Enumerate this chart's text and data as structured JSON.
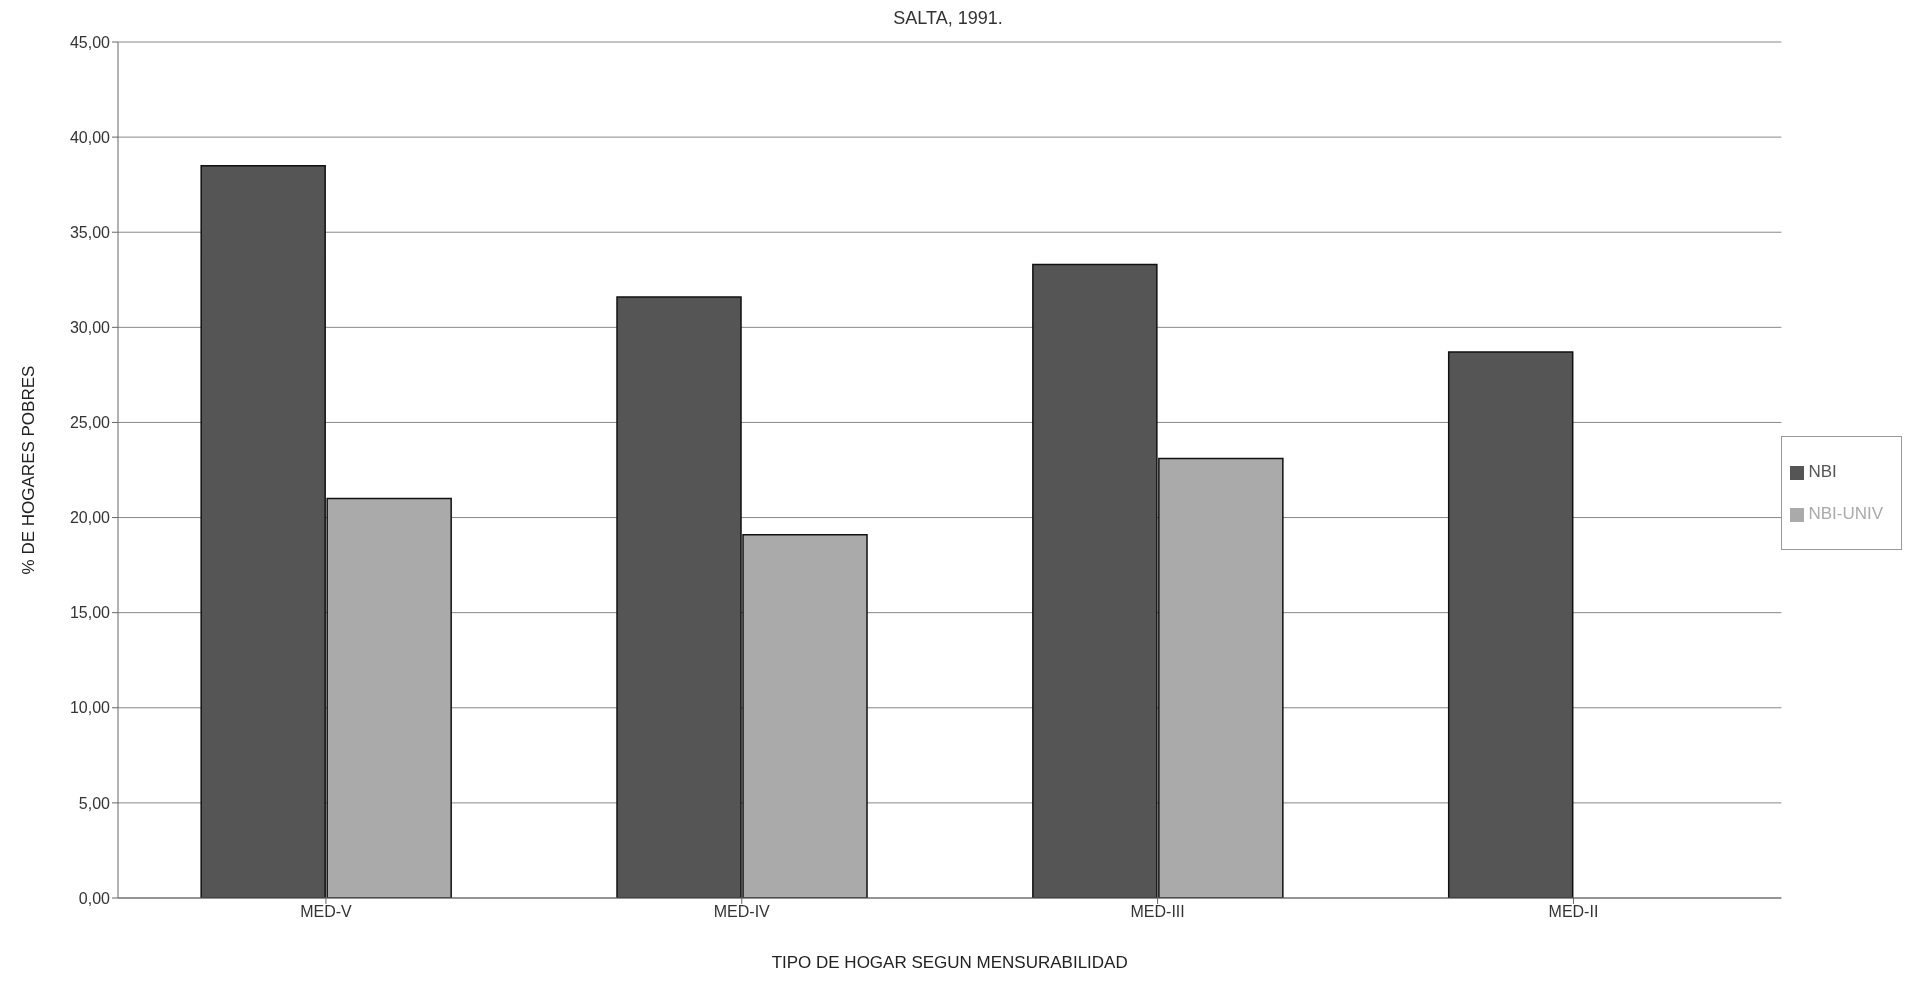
{
  "chart_data": {
    "type": "bar",
    "title": "SALTA, 1991.",
    "xlabel": "TIPO DE HOGAR SEGUN MENSURABILIDAD",
    "ylabel": "% DE HOGARES POBRES",
    "categories": [
      "MED-V",
      "MED-IV",
      "MED-III",
      "MED-II"
    ],
    "series": [
      {
        "name": "NBI",
        "color": "#555555",
        "values": [
          38.5,
          31.6,
          33.3,
          28.7
        ]
      },
      {
        "name": "NBI-UNIV",
        "color": "#aaaaaa",
        "values": [
          21.0,
          19.1,
          23.1,
          null
        ]
      }
    ],
    "ylim": [
      0,
      45
    ],
    "yticks": [
      {
        "value": 0,
        "label": "0,00"
      },
      {
        "value": 5,
        "label": "5,00"
      },
      {
        "value": 10,
        "label": "10,00"
      },
      {
        "value": 15,
        "label": "15,00"
      },
      {
        "value": 20,
        "label": "20,00"
      },
      {
        "value": 25,
        "label": "25,00"
      },
      {
        "value": 30,
        "label": "30,00"
      },
      {
        "value": 35,
        "label": "35,00"
      },
      {
        "value": 40,
        "label": "40,00"
      },
      {
        "value": 45,
        "label": "45,00"
      }
    ],
    "grid": "y",
    "legend": "right"
  }
}
